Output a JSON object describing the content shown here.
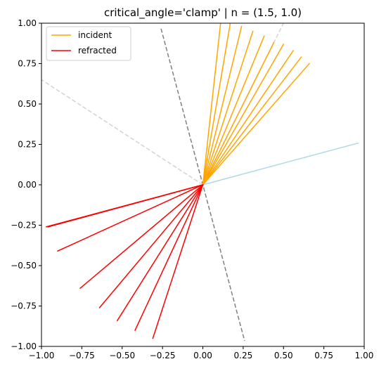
{
  "chart_data": {
    "type": "line",
    "title": "critical_angle='clamp' | n = (1.5, 1.0)",
    "xlabel": "",
    "ylabel": "",
    "xlim": [
      -1.0,
      1.0
    ],
    "ylim": [
      -1.0,
      1.0
    ],
    "aspect": "equal",
    "grid": false,
    "legend": {
      "placement": "top-left",
      "entries": [
        "incident",
        "refracted"
      ]
    },
    "x_ticks": [
      -1.0,
      -0.75,
      -0.5,
      -0.25,
      0.0,
      0.25,
      0.5,
      0.75,
      1.0
    ],
    "y_ticks": [
      -1.0,
      -0.75,
      -0.5,
      -0.25,
      0.0,
      0.25,
      0.5,
      0.75,
      1.0
    ],
    "x_tick_labels": [
      "−1.00",
      "−0.75",
      "−0.50",
      "−0.25",
      "0.00",
      "0.25",
      "0.50",
      "0.75",
      "1.00"
    ],
    "y_tick_labels": [
      "−1.00",
      "−0.75",
      "−0.50",
      "−0.25",
      "0.00",
      "0.25",
      "0.50",
      "0.75",
      "1.00"
    ],
    "reference_lines": [
      {
        "role": "surface",
        "color": "#add8e6",
        "style": "solid",
        "from": [
          0,
          0
        ],
        "to": [
          0.966,
          0.259
        ]
      },
      {
        "role": "normal",
        "color": "#808080",
        "style": "dashed",
        "from": [
          -0.259,
          0.966
        ],
        "to": [
          0.259,
          -0.966
        ]
      },
      {
        "role": "reflection-boundary",
        "color": "#d3d3d3",
        "style": "dashed",
        "from": [
          0,
          0
        ],
        "to": [
          -1.0,
          0.65
        ]
      },
      {
        "role": "reflection-boundary",
        "color": "#d3d3d3",
        "style": "dashed",
        "from": [
          0,
          0
        ],
        "to": [
          0.5,
          1.0
        ]
      }
    ],
    "series": [
      {
        "name": "incident",
        "color": "#ffa500",
        "rays": [
          [
            0.11,
            1.0
          ],
          [
            0.17,
            1.0
          ],
          [
            0.24,
            0.98
          ],
          [
            0.31,
            0.95
          ],
          [
            0.38,
            0.92
          ],
          [
            0.44,
            0.88
          ],
          [
            0.5,
            0.87
          ],
          [
            0.56,
            0.83
          ],
          [
            0.61,
            0.79
          ],
          [
            0.66,
            0.75
          ]
        ]
      },
      {
        "name": "refracted",
        "color": "#ff0000",
        "rays": [
          [
            -0.31,
            -0.95
          ],
          [
            -0.42,
            -0.9
          ],
          [
            -0.53,
            -0.84
          ],
          [
            -0.64,
            -0.76
          ],
          [
            -0.76,
            -0.64
          ],
          [
            -0.9,
            -0.41
          ],
          [
            -0.97,
            -0.26
          ],
          [
            -0.96,
            -0.26
          ],
          [
            -0.96,
            -0.26
          ],
          [
            -0.96,
            -0.26
          ]
        ]
      }
    ]
  }
}
